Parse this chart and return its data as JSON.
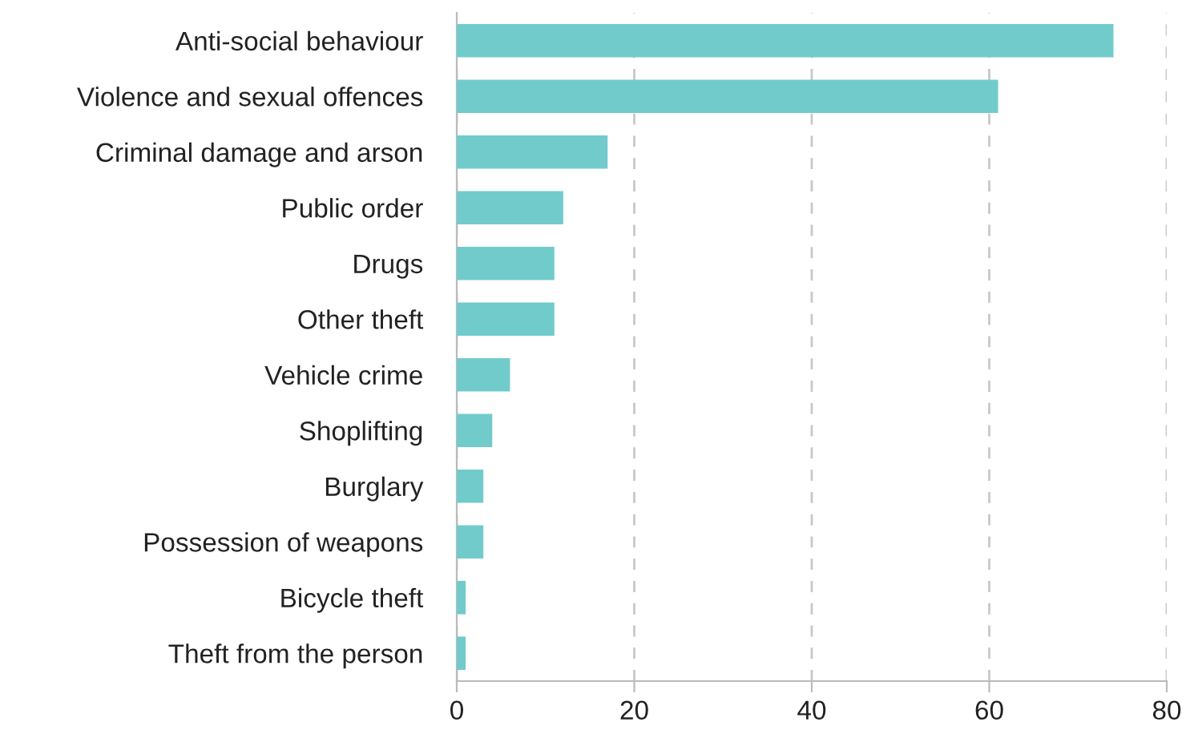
{
  "chart_data": {
    "type": "bar",
    "orientation": "horizontal",
    "categories": [
      "Anti-social behaviour",
      "Violence and sexual offences",
      "Criminal damage and arson",
      "Public order",
      "Drugs",
      "Other theft",
      "Vehicle crime",
      "Shoplifting",
      "Burglary",
      "Possession of weapons",
      "Bicycle theft",
      "Theft from the person"
    ],
    "values": [
      74,
      61,
      17,
      12,
      11,
      11,
      6,
      4,
      3,
      3,
      1,
      1
    ],
    "color": "#72cbcb",
    "xlim": [
      0,
      80
    ],
    "xticks": [
      0,
      20,
      40,
      60,
      80
    ],
    "grid": "x",
    "legend": false
  }
}
